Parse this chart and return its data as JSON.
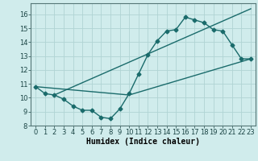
{
  "line1_x": [
    0,
    1,
    2,
    3,
    4,
    5,
    6,
    7,
    8,
    9,
    10,
    11,
    12,
    13,
    14,
    15,
    16,
    17,
    18,
    19,
    20,
    21,
    22,
    23
  ],
  "line1_y": [
    10.8,
    10.3,
    10.2,
    9.9,
    9.4,
    9.1,
    9.1,
    8.6,
    8.5,
    9.2,
    10.3,
    11.7,
    13.1,
    14.1,
    14.8,
    14.9,
    15.8,
    15.6,
    15.4,
    14.9,
    14.8,
    13.8,
    12.8,
    12.8
  ],
  "line2_x": [
    0,
    10,
    23
  ],
  "line2_y": [
    10.8,
    10.2,
    12.8
  ],
  "line3_x": [
    2,
    23
  ],
  "line3_y": [
    10.2,
    16.4
  ],
  "line_color": "#1a6b6b",
  "bg_color": "#d0ecec",
  "grid_color": "#b0d4d4",
  "xlabel": "Humidex (Indice chaleur)",
  "xlim": [
    -0.5,
    23.5
  ],
  "ylim": [
    8,
    16.8
  ],
  "yticks": [
    8,
    9,
    10,
    11,
    12,
    13,
    14,
    15,
    16
  ],
  "xticks": [
    0,
    1,
    2,
    3,
    4,
    5,
    6,
    7,
    8,
    9,
    10,
    11,
    12,
    13,
    14,
    15,
    16,
    17,
    18,
    19,
    20,
    21,
    22,
    23
  ],
  "marker": "D",
  "markersize": 2.5,
  "linewidth": 1.0,
  "xlabel_fontsize": 7,
  "tick_fontsize": 6
}
